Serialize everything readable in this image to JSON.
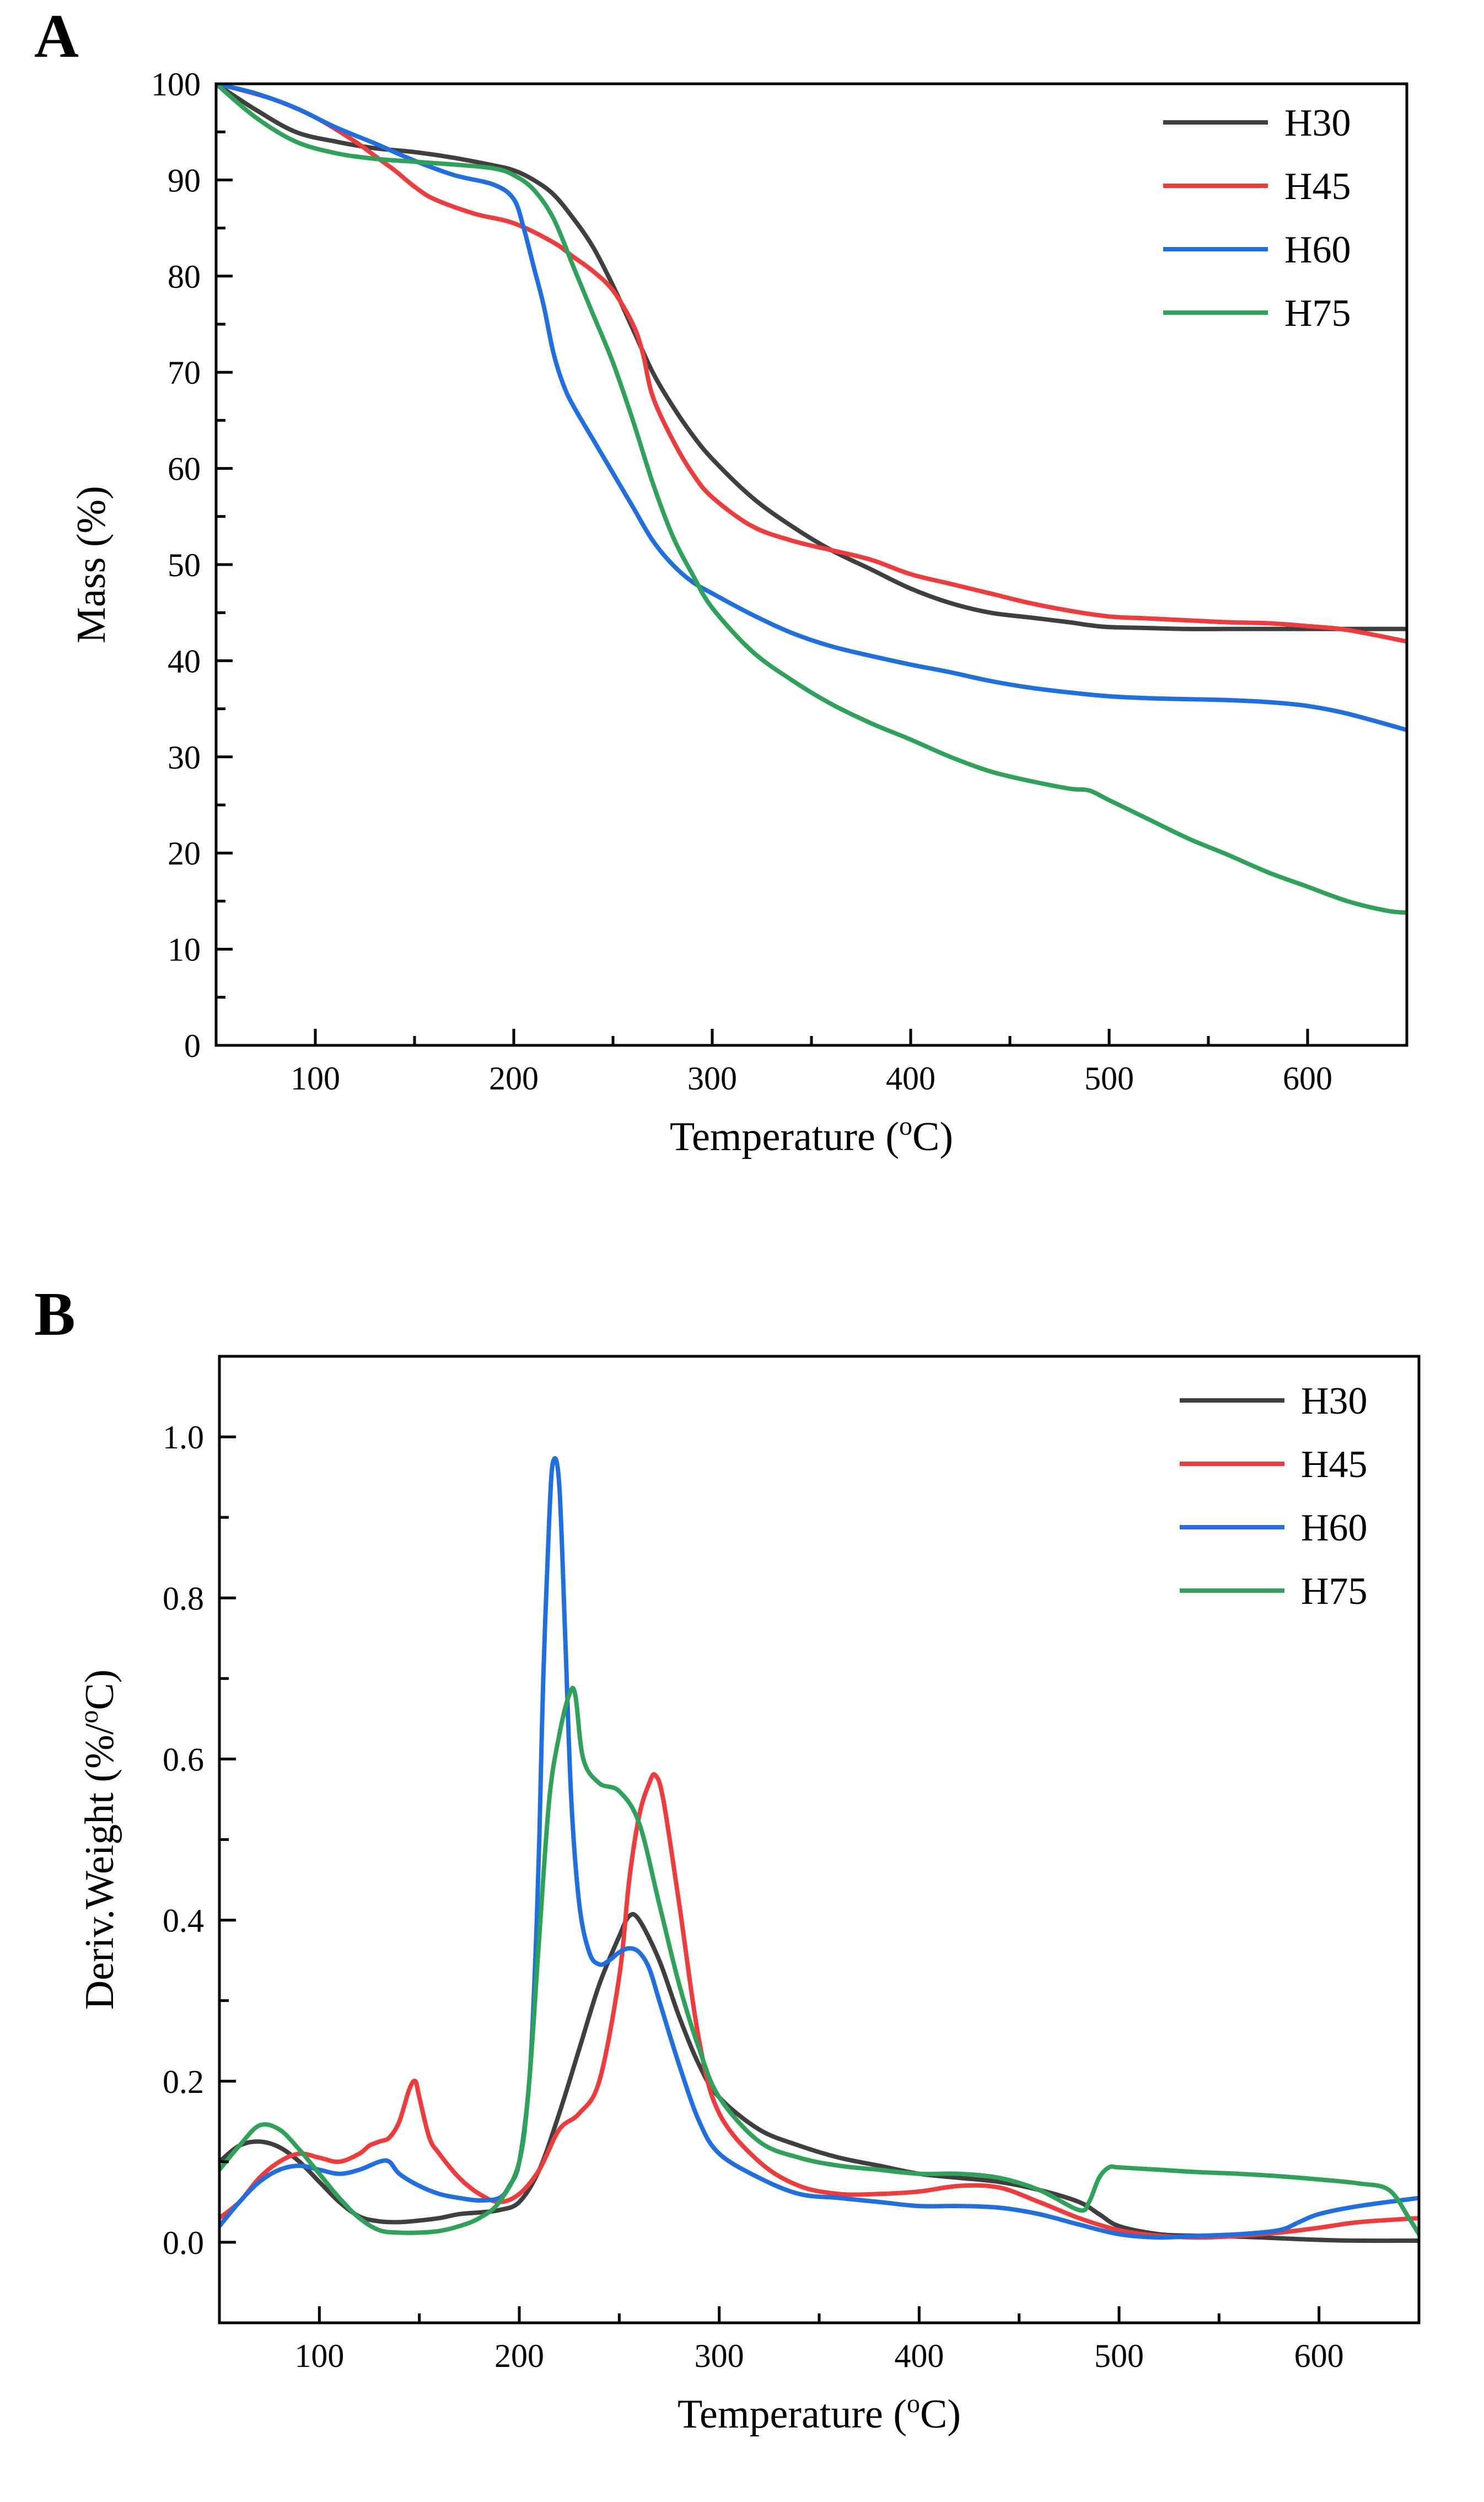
{
  "chart_data": [
    {
      "panel": "A",
      "type": "line",
      "xlabel": "Temperature (",
      "xlabel_sup": "o",
      "xlabel_tail": "C)",
      "ylabel": "Mass (%)",
      "xlim": [
        50,
        650
      ],
      "ylim": [
        0,
        100
      ],
      "xticks": [
        100,
        200,
        300,
        400,
        500,
        600
      ],
      "yticks": [
        0,
        10,
        20,
        30,
        40,
        50,
        60,
        70,
        80,
        90,
        100
      ],
      "legend_position": "top-right",
      "series": [
        {
          "name": "H30",
          "color": "#3f3f3f",
          "x": [
            50,
            70,
            90,
            110,
            130,
            150,
            170,
            190,
            200,
            210,
            220,
            230,
            240,
            250,
            260,
            270,
            280,
            290,
            300,
            320,
            340,
            360,
            380,
            400,
            420,
            440,
            460,
            480,
            490,
            500,
            520,
            540,
            560,
            580,
            600,
            620,
            650
          ],
          "y": [
            100,
            97.3,
            95,
            94,
            93.3,
            92.9,
            92.3,
            91.5,
            91,
            90,
            88.5,
            86,
            83,
            79,
            74.5,
            70,
            66.5,
            63.5,
            61,
            57,
            54,
            51.5,
            49.5,
            47.5,
            46,
            45,
            44.5,
            44,
            43.7,
            43.5,
            43.4,
            43.3,
            43.3,
            43.3,
            43.3,
            43.3,
            43.3
          ]
        },
        {
          "name": "H45",
          "color": "#ee3b3b",
          "x": [
            50,
            60,
            80,
            100,
            120,
            130,
            140,
            150,
            160,
            180,
            200,
            220,
            230,
            240,
            250,
            260,
            265,
            270,
            280,
            290,
            300,
            320,
            340,
            360,
            380,
            400,
            420,
            440,
            460,
            480,
            500,
            520,
            540,
            560,
            580,
            600,
            620,
            650
          ],
          "y": [
            100,
            99.5,
            98.3,
            96.5,
            94,
            92.5,
            91,
            89.3,
            88,
            86.5,
            85.5,
            83.5,
            82,
            80.5,
            78.5,
            75,
            72,
            67.5,
            63,
            59.5,
            57,
            54,
            52.5,
            51.5,
            50.5,
            49,
            48,
            47,
            46,
            45.2,
            44.6,
            44.4,
            44.2,
            44,
            43.9,
            43.6,
            43.2,
            42
          ]
        },
        {
          "name": "H60",
          "color": "#1f6fe0",
          "x": [
            50,
            70,
            90,
            110,
            130,
            150,
            170,
            190,
            200,
            205,
            210,
            215,
            220,
            225,
            230,
            240,
            250,
            260,
            270,
            280,
            290,
            300,
            320,
            340,
            360,
            380,
            400,
            420,
            440,
            460,
            480,
            500,
            520,
            540,
            560,
            580,
            600,
            620,
            650
          ],
          "y": [
            100,
            99,
            97.5,
            95.5,
            93.8,
            92,
            90.5,
            89.5,
            88,
            85,
            81,
            77,
            72,
            68.7,
            66.5,
            63,
            59.5,
            56,
            52.5,
            50,
            48.2,
            47,
            44.8,
            42.9,
            41.5,
            40.5,
            39.6,
            38.8,
            37.9,
            37.2,
            36.7,
            36.3,
            36.1,
            36,
            35.9,
            35.7,
            35.3,
            34.5,
            32.8
          ]
        },
        {
          "name": "H75",
          "color": "#2fa25a",
          "x": [
            50,
            70,
            90,
            110,
            130,
            150,
            170,
            190,
            200,
            210,
            220,
            230,
            240,
            250,
            260,
            270,
            280,
            290,
            300,
            320,
            340,
            360,
            380,
            400,
            420,
            440,
            460,
            480,
            490,
            500,
            520,
            540,
            560,
            580,
            600,
            620,
            640,
            650
          ],
          "y": [
            100,
            96.5,
            94,
            92.8,
            92.2,
            91.9,
            91.6,
            91.2,
            90.5,
            89,
            86,
            81,
            76,
            71,
            65,
            58.5,
            53,
            49,
            45.5,
            41,
            38,
            35.5,
            33.5,
            31.8,
            30,
            28.5,
            27.5,
            26.7,
            26.5,
            25.5,
            23.5,
            21.5,
            19.8,
            18,
            16.5,
            15,
            14,
            13.8
          ]
        }
      ]
    },
    {
      "panel": "B",
      "type": "line",
      "xlabel": "Temperature (",
      "xlabel_sup": "o",
      "xlabel_tail": "C)",
      "ylabel": "Deriv.Weight (%/",
      "ylabel_sup": "o",
      "ylabel_tail": "C)",
      "xlim": [
        50,
        650
      ],
      "ylim": [
        -0.1,
        1.1
      ],
      "xticks": [
        100,
        200,
        300,
        400,
        500,
        600
      ],
      "yticks": [
        0.0,
        0.2,
        0.4,
        0.6,
        0.8,
        1.0
      ],
      "yticklabels": [
        "0.0",
        "0.2",
        "0.4",
        "0.6",
        "0.8",
        "1.0"
      ],
      "legend_position": "top-right",
      "series": [
        {
          "name": "H30",
          "color": "#3f3f3f",
          "x": [
            50,
            60,
            70,
            80,
            90,
            100,
            110,
            120,
            130,
            140,
            150,
            160,
            170,
            180,
            190,
            200,
            210,
            220,
            230,
            240,
            250,
            255,
            260,
            270,
            280,
            290,
            300,
            320,
            340,
            360,
            380,
            400,
            420,
            440,
            460,
            480,
            490,
            500,
            520,
            540,
            560,
            580,
            600,
            620,
            650
          ],
          "y": [
            0.1,
            0.12,
            0.125,
            0.118,
            0.1,
            0.075,
            0.05,
            0.032,
            0.026,
            0.025,
            0.027,
            0.03,
            0.035,
            0.037,
            0.04,
            0.05,
            0.09,
            0.16,
            0.24,
            0.32,
            0.38,
            0.405,
            0.4,
            0.35,
            0.28,
            0.22,
            0.18,
            0.14,
            0.12,
            0.105,
            0.095,
            0.085,
            0.08,
            0.075,
            0.065,
            0.05,
            0.035,
            0.02,
            0.01,
            0.008,
            0.007,
            0.005,
            0.003,
            0.002,
            0.002
          ]
        },
        {
          "name": "H45",
          "color": "#ee3b3b",
          "x": [
            50,
            60,
            70,
            80,
            90,
            100,
            110,
            120,
            125,
            130,
            135,
            140,
            145,
            148,
            150,
            155,
            160,
            170,
            180,
            190,
            200,
            210,
            220,
            230,
            240,
            250,
            255,
            260,
            265,
            268,
            272,
            280,
            290,
            300,
            320,
            340,
            360,
            380,
            400,
            420,
            440,
            460,
            480,
            500,
            520,
            540,
            560,
            580,
            600,
            620,
            650
          ],
          "y": [
            0.03,
            0.05,
            0.08,
            0.1,
            0.11,
            0.105,
            0.1,
            0.11,
            0.12,
            0.125,
            0.13,
            0.15,
            0.19,
            0.2,
            0.18,
            0.13,
            0.11,
            0.08,
            0.06,
            0.05,
            0.06,
            0.09,
            0.14,
            0.16,
            0.2,
            0.33,
            0.45,
            0.53,
            0.57,
            0.58,
            0.55,
            0.42,
            0.25,
            0.16,
            0.1,
            0.07,
            0.06,
            0.06,
            0.063,
            0.07,
            0.068,
            0.05,
            0.03,
            0.015,
            0.008,
            0.006,
            0.008,
            0.012,
            0.018,
            0.025,
            0.03
          ]
        },
        {
          "name": "H60",
          "color": "#1f6fe0",
          "x": [
            50,
            60,
            70,
            80,
            90,
            100,
            110,
            120,
            130,
            135,
            140,
            150,
            160,
            170,
            180,
            190,
            195,
            200,
            205,
            208,
            210,
            212,
            215,
            217,
            220,
            223,
            226,
            230,
            235,
            240,
            245,
            250,
            255,
            260,
            265,
            270,
            280,
            290,
            300,
            320,
            340,
            360,
            380,
            400,
            420,
            440,
            460,
            480,
            500,
            520,
            540,
            560,
            580,
            590,
            600,
            620,
            650
          ],
          "y": [
            0.02,
            0.05,
            0.075,
            0.09,
            0.095,
            0.09,
            0.085,
            0.09,
            0.1,
            0.1,
            0.085,
            0.07,
            0.06,
            0.055,
            0.052,
            0.055,
            0.07,
            0.1,
            0.2,
            0.35,
            0.5,
            0.7,
            0.9,
            0.97,
            0.94,
            0.75,
            0.55,
            0.42,
            0.36,
            0.345,
            0.35,
            0.36,
            0.365,
            0.36,
            0.34,
            0.3,
            0.22,
            0.15,
            0.11,
            0.08,
            0.06,
            0.055,
            0.05,
            0.045,
            0.045,
            0.043,
            0.035,
            0.022,
            0.01,
            0.006,
            0.008,
            0.01,
            0.015,
            0.025,
            0.035,
            0.045,
            0.055
          ]
        },
        {
          "name": "H75",
          "color": "#2fa25a",
          "x": [
            50,
            60,
            70,
            80,
            90,
            100,
            110,
            120,
            130,
            140,
            150,
            160,
            170,
            180,
            190,
            200,
            205,
            210,
            215,
            220,
            225,
            228,
            232,
            240,
            250,
            260,
            270,
            280,
            290,
            300,
            320,
            340,
            360,
            380,
            400,
            420,
            440,
            460,
            480,
            485,
            490,
            495,
            500,
            520,
            540,
            560,
            580,
            600,
            620,
            635,
            645,
            650
          ],
          "y": [
            0.09,
            0.12,
            0.145,
            0.14,
            0.115,
            0.085,
            0.055,
            0.03,
            0.015,
            0.012,
            0.012,
            0.014,
            0.02,
            0.03,
            0.05,
            0.1,
            0.2,
            0.38,
            0.55,
            0.63,
            0.68,
            0.68,
            0.6,
            0.57,
            0.56,
            0.52,
            0.42,
            0.32,
            0.24,
            0.18,
            0.125,
            0.105,
            0.095,
            0.09,
            0.085,
            0.085,
            0.08,
            0.065,
            0.04,
            0.05,
            0.08,
            0.093,
            0.093,
            0.09,
            0.087,
            0.085,
            0.082,
            0.078,
            0.073,
            0.065,
            0.03,
            0.01
          ]
        }
      ]
    }
  ]
}
